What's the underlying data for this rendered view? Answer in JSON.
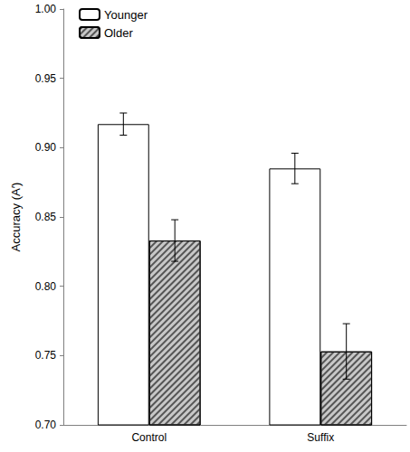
{
  "chart_data": {
    "type": "bar",
    "y_label": "Accuracy (A′)",
    "categories": [
      "Control",
      "Suffix"
    ],
    "series": [
      {
        "name": "Younger",
        "color": "#ffffff",
        "values": [
          0.917,
          0.885
        ],
        "errors": [
          0.008,
          0.011
        ]
      },
      {
        "name": "Older",
        "color": "#c8c8c8",
        "marker": "hatch",
        "values": [
          0.833,
          0.753
        ],
        "errors": [
          0.015,
          0.02
        ]
      }
    ],
    "ylim": [
      0.7,
      1.0
    ],
    "yticks": [
      {
        "value": 0.7,
        "label": "0.70"
      },
      {
        "value": 0.75,
        "label": "0.75"
      },
      {
        "value": 0.8,
        "label": "0.80"
      },
      {
        "value": 0.85,
        "label": "0.85"
      },
      {
        "value": 0.9,
        "label": "0.90"
      },
      {
        "value": 0.95,
        "label": "0.95"
      },
      {
        "value": 1.0,
        "label": "1.00"
      }
    ],
    "grid": false,
    "legend": "upper left"
  }
}
